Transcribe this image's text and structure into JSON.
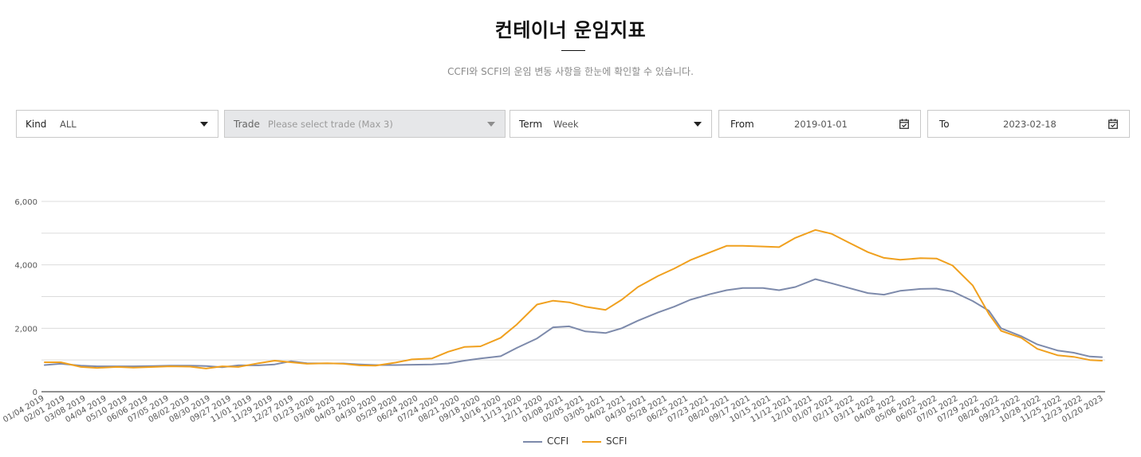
{
  "header": {
    "title": "컨테이너 운임지표",
    "subtitle": "CCFI와 SCFI의 운임 변동 사항을 한눈에 확인할 수 있습니다."
  },
  "filters": {
    "kind": {
      "label": "Kind",
      "value": "ALL"
    },
    "trade": {
      "label": "Trade",
      "placeholder": "Please select trade (Max 3)"
    },
    "term": {
      "label": "Term",
      "value": "Week"
    },
    "from": {
      "label": "From",
      "value": "2019-01-01"
    },
    "to": {
      "label": "To",
      "value": "2023-02-18"
    }
  },
  "icons": {
    "dropdown": "chevron-down-icon",
    "calendar": "calendar-icon"
  },
  "colors": {
    "ccfi": "#7d8aab",
    "scfi": "#f0a01e",
    "grid": "#dcdcdc",
    "axis": "#222222"
  },
  "chart_data": {
    "type": "line",
    "xlabel": "",
    "ylabel": "",
    "ylim": [
      0,
      6000
    ],
    "yticks": [
      0,
      2000,
      4000,
      6000
    ],
    "ytick_labels": [
      "0",
      "2,000",
      "4,000",
      "6,000"
    ],
    "grid": true,
    "legend_position": "bottom-center",
    "x_tick_labels": [
      "01/04 2019",
      "02/01 2019",
      "03/08 2019",
      "04/04 2019",
      "05/10 2019",
      "06/06 2019",
      "07/05 2019",
      "08/02 2019",
      "08/30 2019",
      "09/27 2019",
      "11/01 2019",
      "11/29 2019",
      "12/27 2019",
      "01/23 2020",
      "03/06 2020",
      "04/03 2020",
      "04/30 2020",
      "05/29 2020",
      "06/24 2020",
      "07/24 2020",
      "08/21 2020",
      "09/18 2020",
      "10/16 2020",
      "11/13 2020",
      "12/11 2020",
      "01/08 2021",
      "02/05 2021",
      "03/05 2021",
      "04/02 2021",
      "04/30 2021",
      "05/28 2021",
      "06/25 2021",
      "07/23 2021",
      "08/20 2021",
      "09/17 2021",
      "10/15 2021",
      "11/12 2021",
      "12/10 2021",
      "01/07 2022",
      "02/11 2022",
      "03/11 2022",
      "04/08 2022",
      "05/06 2022",
      "06/02 2022",
      "07/01 2022",
      "07/29 2022",
      "08/26 2022",
      "09/23 2022",
      "10/28 2022",
      "11/25 2022",
      "12/23 2022",
      "01/20 2023"
    ],
    "series": [
      {
        "name": "CCFI",
        "color": "#7d8aab",
        "values": [
          [
            0,
            840
          ],
          [
            4,
            880
          ],
          [
            9,
            820
          ],
          [
            13,
            800
          ],
          [
            18,
            800
          ],
          [
            22,
            800
          ],
          [
            27,
            810
          ],
          [
            31,
            820
          ],
          [
            36,
            820
          ],
          [
            40,
            810
          ],
          [
            44,
            770
          ],
          [
            48,
            830
          ],
          [
            53,
            830
          ],
          [
            57,
            860
          ],
          [
            61,
            960
          ],
          [
            65,
            900
          ],
          [
            70,
            890
          ],
          [
            74,
            890
          ],
          [
            78,
            860
          ],
          [
            82,
            840
          ],
          [
            87,
            840
          ],
          [
            91,
            850
          ],
          [
            96,
            860
          ],
          [
            100,
            890
          ],
          [
            104,
            980
          ],
          [
            108,
            1050
          ],
          [
            113,
            1120
          ],
          [
            117,
            1380
          ],
          [
            122,
            1680
          ],
          [
            126,
            2030
          ],
          [
            130,
            2060
          ],
          [
            134,
            1900
          ],
          [
            139,
            1850
          ],
          [
            143,
            2000
          ],
          [
            147,
            2240
          ],
          [
            152,
            2500
          ],
          [
            156,
            2680
          ],
          [
            160,
            2900
          ],
          [
            165,
            3080
          ],
          [
            169,
            3200
          ],
          [
            173,
            3270
          ],
          [
            178,
            3270
          ],
          [
            182,
            3200
          ],
          [
            186,
            3300
          ],
          [
            191,
            3550
          ],
          [
            195,
            3420
          ],
          [
            199,
            3280
          ],
          [
            204,
            3110
          ],
          [
            208,
            3060
          ],
          [
            212,
            3180
          ],
          [
            217,
            3240
          ],
          [
            221,
            3250
          ],
          [
            225,
            3160
          ],
          [
            230,
            2860
          ],
          [
            234,
            2550
          ],
          [
            237,
            2000
          ],
          [
            242,
            1750
          ],
          [
            246,
            1490
          ],
          [
            251,
            1300
          ],
          [
            255,
            1230
          ],
          [
            259,
            1110
          ],
          [
            262,
            1090
          ]
        ]
      },
      {
        "name": "SCFI",
        "color": "#f0a01e",
        "values": [
          [
            0,
            930
          ],
          [
            4,
            930
          ],
          [
            9,
            780
          ],
          [
            13,
            750
          ],
          [
            18,
            780
          ],
          [
            22,
            760
          ],
          [
            27,
            780
          ],
          [
            31,
            800
          ],
          [
            36,
            790
          ],
          [
            40,
            730
          ],
          [
            44,
            800
          ],
          [
            48,
            780
          ],
          [
            53,
            900
          ],
          [
            57,
            980
          ],
          [
            61,
            930
          ],
          [
            65,
            880
          ],
          [
            70,
            900
          ],
          [
            74,
            880
          ],
          [
            78,
            830
          ],
          [
            82,
            820
          ],
          [
            87,
            920
          ],
          [
            91,
            1020
          ],
          [
            96,
            1050
          ],
          [
            100,
            1260
          ],
          [
            104,
            1410
          ],
          [
            108,
            1430
          ],
          [
            113,
            1700
          ],
          [
            117,
            2120
          ],
          [
            122,
            2750
          ],
          [
            126,
            2870
          ],
          [
            130,
            2820
          ],
          [
            134,
            2680
          ],
          [
            139,
            2580
          ],
          [
            143,
            2900
          ],
          [
            147,
            3300
          ],
          [
            152,
            3650
          ],
          [
            156,
            3880
          ],
          [
            160,
            4150
          ],
          [
            165,
            4400
          ],
          [
            169,
            4600
          ],
          [
            173,
            4600
          ],
          [
            178,
            4580
          ],
          [
            182,
            4560
          ],
          [
            186,
            4850
          ],
          [
            191,
            5100
          ],
          [
            195,
            4980
          ],
          [
            199,
            4720
          ],
          [
            204,
            4400
          ],
          [
            208,
            4220
          ],
          [
            212,
            4160
          ],
          [
            217,
            4210
          ],
          [
            221,
            4200
          ],
          [
            225,
            3980
          ],
          [
            230,
            3350
          ],
          [
            234,
            2450
          ],
          [
            237,
            1920
          ],
          [
            242,
            1700
          ],
          [
            246,
            1350
          ],
          [
            251,
            1150
          ],
          [
            255,
            1100
          ],
          [
            259,
            1000
          ],
          [
            262,
            980
          ]
        ]
      }
    ]
  }
}
